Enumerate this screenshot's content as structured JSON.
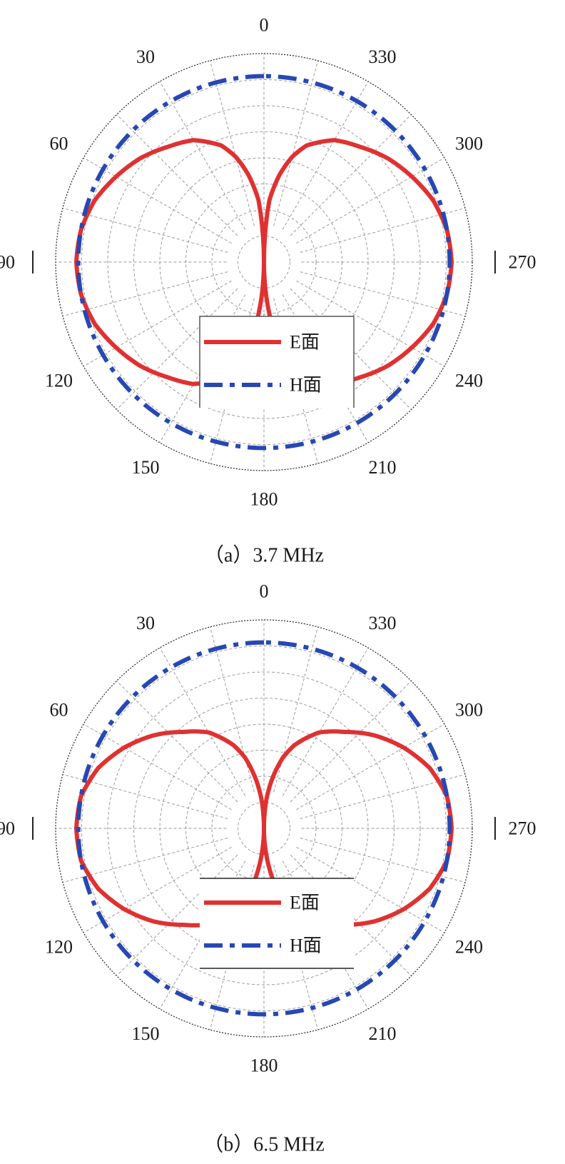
{
  "chart_data": [
    {
      "type": "polar-line",
      "caption": "（a）3.7 MHz",
      "angle_labels": [
        "0",
        "30",
        "60",
        "90",
        "120",
        "150",
        "180",
        "210",
        "240",
        "270",
        "300",
        "330"
      ],
      "angle_direction": "counterclockwise, 0 at top",
      "radial_range": [
        0,
        1
      ],
      "grid": true,
      "legend": "center-bottom",
      "series": [
        {
          "name": "E面",
          "color": "#e03131",
          "style": "solid",
          "theta": [
            0,
            5,
            10,
            15,
            20,
            30,
            40,
            50,
            60,
            70,
            80,
            90,
            100,
            110,
            120,
            130,
            140,
            150,
            160,
            170,
            180
          ],
          "r": [
            0,
            0.33,
            0.47,
            0.58,
            0.66,
            0.75,
            0.8,
            0.86,
            0.91,
            0.96,
            0.99,
            1.0,
            0.99,
            0.96,
            0.91,
            0.86,
            0.8,
            0.75,
            0.66,
            0.47,
            0
          ]
        },
        {
          "name": "H面",
          "color": "#2748b3",
          "style": "dashdot",
          "theta": [
            0,
            30,
            60,
            90,
            120,
            150,
            180,
            210,
            240,
            270,
            300,
            330
          ],
          "r": [
            0.99,
            0.99,
            0.99,
            0.99,
            0.99,
            0.99,
            0.99,
            0.99,
            0.99,
            0.99,
            0.99,
            0.99
          ]
        }
      ]
    },
    {
      "type": "polar-line",
      "caption": "（b）6.5 MHz",
      "angle_labels": [
        "0",
        "30",
        "60",
        "90",
        "120",
        "150",
        "180",
        "210",
        "240",
        "270",
        "300",
        "330"
      ],
      "angle_direction": "counterclockwise, 0 at top",
      "radial_range": [
        0,
        1
      ],
      "grid": true,
      "legend": "center-bottom",
      "series": [
        {
          "name": "E面",
          "color": "#e03131",
          "style": "solid",
          "theta": [
            0,
            5,
            10,
            15,
            20,
            30,
            40,
            50,
            60,
            70,
            80,
            90,
            100,
            110,
            120,
            130,
            140,
            150,
            160,
            170,
            180
          ],
          "r": [
            0,
            0.16,
            0.28,
            0.39,
            0.47,
            0.59,
            0.67,
            0.77,
            0.86,
            0.94,
            0.99,
            1.0,
            0.99,
            0.94,
            0.86,
            0.77,
            0.67,
            0.59,
            0.47,
            0.28,
            0
          ]
        },
        {
          "name": "H面",
          "color": "#2748b3",
          "style": "dashdot",
          "theta": [
            0,
            30,
            60,
            90,
            120,
            150,
            180,
            210,
            240,
            270,
            300,
            330
          ],
          "r": [
            0.99,
            0.99,
            0.99,
            0.99,
            0.99,
            0.99,
            0.99,
            0.99,
            0.99,
            0.99,
            0.99,
            0.99
          ]
        }
      ]
    }
  ]
}
